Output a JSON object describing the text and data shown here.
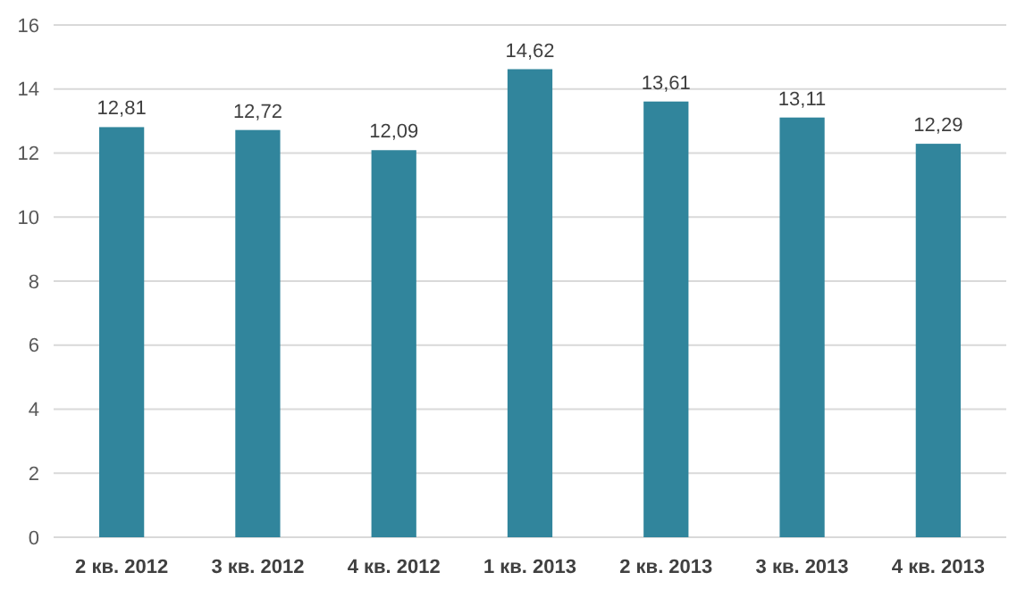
{
  "chart_data": {
    "type": "bar",
    "categories": [
      "2 кв. 2012",
      "3 кв. 2012",
      "4 кв. 2012",
      "1 кв. 2013",
      "2 кв. 2013",
      "3 кв. 2013",
      "4 кв. 2013"
    ],
    "values": [
      12.81,
      12.72,
      12.09,
      14.62,
      13.61,
      13.11,
      12.29
    ],
    "value_labels": [
      "12,81",
      "12,72",
      "12,09",
      "14,62",
      "13,61",
      "13,11",
      "12,29"
    ],
    "color": "#31859c",
    "ylim": [
      0,
      16
    ],
    "yticks": [
      0,
      2,
      4,
      6,
      8,
      10,
      12,
      14,
      16
    ],
    "grid": "y"
  }
}
